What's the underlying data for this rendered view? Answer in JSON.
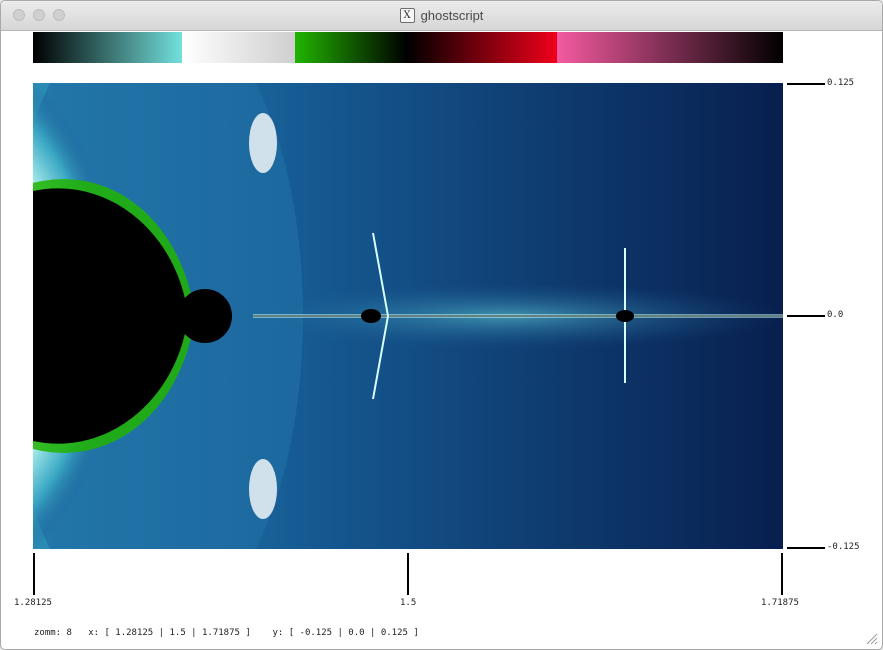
{
  "window": {
    "title": "ghostscript"
  },
  "palette": {
    "colors": [
      {
        "from": "#000000",
        "to": "#72e0dc"
      },
      {
        "from": "#ffffff",
        "to": "#cfcfcf"
      },
      {
        "from": "#21b400",
        "to": "#000000"
      },
      {
        "from": "#000000",
        "to": "#f0001a"
      },
      {
        "from": "#f45aa0",
        "to": "#000000"
      }
    ]
  },
  "fractal": {
    "background": "#0a2c5c",
    "set_color": "#000000"
  },
  "axis": {
    "x_ticks": [
      "1.28125",
      "1.5",
      "1.71875"
    ],
    "y_ticks": [
      "0.125",
      "0.0",
      "-0.125"
    ]
  },
  "status": {
    "zoom": "zomm: 8",
    "x": "x: [ 1.28125 | 1.5 | 1.71875 ]",
    "y": "y: [ -0.125 | 0.0 | 0.125 ]"
  }
}
